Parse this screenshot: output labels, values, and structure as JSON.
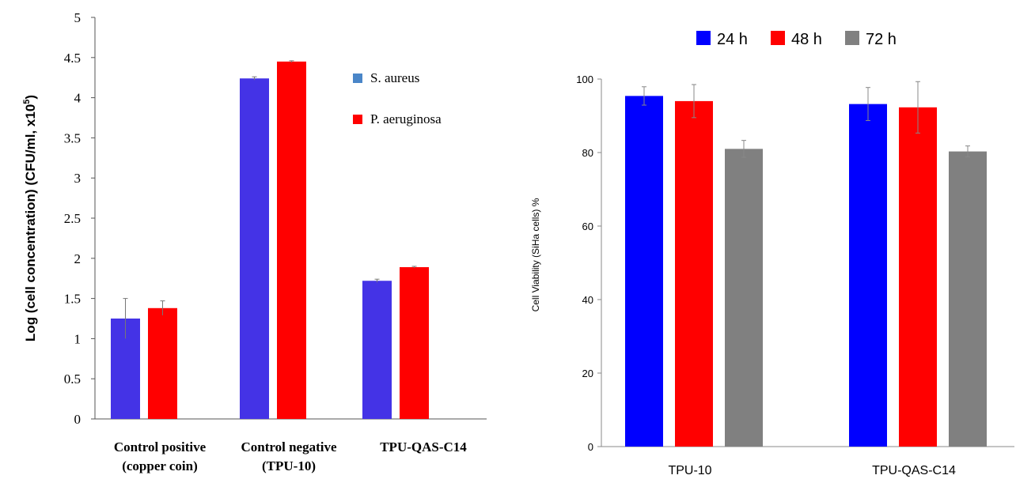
{
  "chart_data": [
    {
      "type": "bar",
      "title": "",
      "xlabel": "",
      "ylabel": "Log (cell concentration) (CFU/ml, x10",
      "ylabel_sup": "5",
      "ylabel_close": ")",
      "ylim": [
        0,
        5
      ],
      "yticks": [
        "0",
        "0.5",
        "1",
        "1.5",
        "2",
        "2.5",
        "3",
        "3.5",
        "4",
        "4.5",
        "5"
      ],
      "categories": [
        [
          "Control positive",
          "(copper coin)"
        ],
        [
          "Control negative",
          "(TPU-10)"
        ],
        [
          "TPU-QAS-C14"
        ]
      ],
      "legend_position": "top-right",
      "series": [
        {
          "name": "S. aureus",
          "color": "#4433e6",
          "legend_color": "#4a86c8",
          "values": [
            1.25,
            4.24,
            1.72
          ],
          "errors": [
            0.25,
            0.02,
            0.02
          ]
        },
        {
          "name": "P. aeruginosa",
          "color": "#ff0000",
          "legend_color": "#ff0000",
          "values": [
            1.38,
            4.45,
            1.89
          ],
          "errors": [
            0.09,
            0.01,
            0.01
          ]
        }
      ]
    },
    {
      "type": "bar",
      "title": "",
      "xlabel": "",
      "ylabel": "Cell Viability  (SiHa cells) %",
      "ylim": [
        0,
        100
      ],
      "yticks": [
        "0",
        "20",
        "40",
        "60",
        "80",
        "100"
      ],
      "categories": [
        "TPU-10",
        "TPU-QAS-C14"
      ],
      "legend_position": "top",
      "series": [
        {
          "name": "24 h",
          "color": "#0000ff",
          "values": [
            95.4,
            93.2
          ],
          "errors": [
            2.5,
            4.5
          ]
        },
        {
          "name": "48 h",
          "color": "#ff0000",
          "values": [
            94.0,
            92.3
          ],
          "errors": [
            4.5,
            7.0
          ]
        },
        {
          "name": "72 h",
          "color": "#808080",
          "values": [
            81.0,
            80.3
          ],
          "errors": [
            2.3,
            1.5
          ]
        }
      ]
    }
  ]
}
